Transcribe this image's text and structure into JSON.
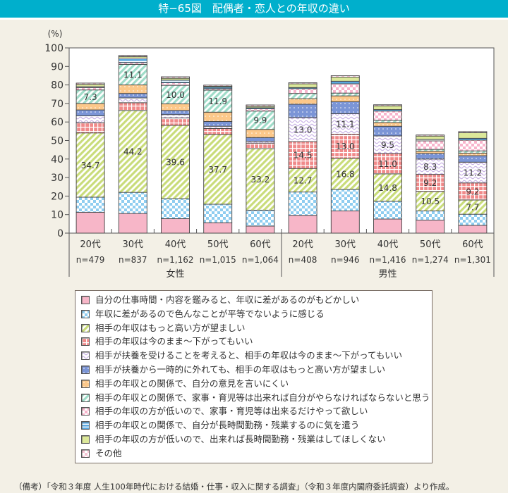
{
  "title": "特−65図　配偶者・恋人との年収の違い",
  "note": "（備考）「令和３年度 人生100年時代における結婚・仕事・収入に関する調査」（令和３年度内閣府委託調査）より作成。",
  "chart_data": {
    "type": "bar",
    "stacked": true,
    "title": "特−65図　配偶者・恋人との年収の違い",
    "ylabel": "(%)",
    "ylim": [
      0,
      100
    ],
    "yticks": [
      0,
      10,
      20,
      30,
      40,
      50,
      60,
      70,
      80,
      90,
      100
    ],
    "grid": false,
    "legend_position": "bottom",
    "groups": [
      {
        "label": "女性",
        "categories": [
          0,
          1,
          2,
          3,
          4
        ]
      },
      {
        "label": "男性",
        "categories": [
          5,
          6,
          7,
          8,
          9
        ]
      }
    ],
    "categories": [
      "20代",
      "30代",
      "40代",
      "50代",
      "60代",
      "20代",
      "30代",
      "40代",
      "50代",
      "60代"
    ],
    "sample_sizes": [
      "n=479",
      "n=837",
      "n=1,162",
      "n=1,015",
      "n=1,064",
      "n=408",
      "n=946",
      "n=1,416",
      "n=1,274",
      "n=1,301"
    ],
    "series": [
      {
        "name": "自分の仕事時間・内容を鑑みると、年収に差があるのがもどかしい",
        "color": "#f7b6c8",
        "pattern": "solid",
        "values": [
          11.2,
          10.6,
          7.8,
          5.6,
          3.8,
          9.6,
          12.0,
          7.6,
          7.0,
          4.2
        ]
      },
      {
        "name": "年収に差があるので色んなことが平等でないように感じる",
        "color": "#8fcdf0",
        "pattern": "check",
        "values": [
          8.2,
          11.4,
          10.8,
          10.0,
          8.6,
          12.6,
          11.6,
          9.6,
          5.0,
          6.0
        ]
      },
      {
        "name": "相手の年収はもっと高い方が望ましい",
        "color": "#c9dc7a",
        "pattern": "diagonal",
        "labels": true,
        "values": [
          34.7,
          44.2,
          39.6,
          37.7,
          33.2,
          12.7,
          16.8,
          14.8,
          10.5,
          7.7
        ]
      },
      {
        "name": "相手の年収は今のまま〜下がってもいい",
        "color": "#f08a8a",
        "pattern": "grid",
        "labels_from": 5,
        "values": [
          5.5,
          4.2,
          4.0,
          3.2,
          3.0,
          14.5,
          13.0,
          11.0,
          9.2,
          9.2
        ]
      },
      {
        "name": "相手が扶養を受けることを考えると、相手の年収は今のまま〜下がってもいい",
        "color": "#c9b3e6",
        "pattern": "wave",
        "labels_from": 5,
        "values": [
          3.7,
          2.6,
          1.8,
          1.2,
          1.0,
          13.0,
          11.1,
          9.5,
          8.3,
          11.2
        ]
      },
      {
        "name": "相手が扶養から一時的に外れても、相手の年収はもっと高い方が望ましい",
        "color": "#7b95d6",
        "pattern": "dot",
        "values": [
          3.2,
          2.4,
          2.2,
          2.6,
          2.0,
          7.2,
          6.4,
          5.2,
          3.0,
          3.5
        ]
      },
      {
        "name": "相手の年収との関係で、自分の意見を言いにくい",
        "color": "#fcc88a",
        "pattern": "dot",
        "values": [
          3.5,
          4.6,
          3.6,
          5.0,
          4.4,
          3.0,
          3.2,
          2.0,
          1.2,
          1.4
        ]
      },
      {
        "name": "相手の年収との関係で、家事・育児等は出来れば自分がやらなければならないと思う",
        "color": "#9fdcc8",
        "pattern": "diagonal",
        "labels_to": 5,
        "values": [
          7.3,
          11.1,
          10.0,
          11.9,
          9.9,
          2.8,
          1.5,
          1.2,
          1.0,
          1.2
        ]
      },
      {
        "name": "相手の年収の方が低いので、家事・育児等は出来るだけやって欲しい",
        "color": "#f8b4cc",
        "pattern": "check",
        "values": [
          1.2,
          1.0,
          1.4,
          0.8,
          1.2,
          2.6,
          5.0,
          5.0,
          4.6,
          5.8
        ]
      },
      {
        "name": "相手の年収との関係で、自分が長時間勤務・残業するのに気を遣う",
        "color": "#5aa8e0",
        "pattern": "stripe",
        "values": [
          0.6,
          2.4,
          1.4,
          0.8,
          0.6,
          0.6,
          1.4,
          0.8,
          0.8,
          1.0
        ]
      },
      {
        "name": "相手の年収の方が低いので、出来れば長時間勤務・残業はしてほしくない",
        "color": "#dce89a",
        "pattern": "solid",
        "values": [
          1.2,
          0.8,
          1.0,
          0.5,
          0.7,
          2.0,
          2.2,
          2.0,
          1.8,
          3.0
        ]
      },
      {
        "name": "その他",
        "color": "#f7c4d4",
        "pattern": "check",
        "values": [
          0.7,
          0.6,
          0.8,
          0.6,
          0.8,
          0.6,
          0.8,
          0.6,
          0.6,
          0.6
        ]
      }
    ],
    "data_labels": {
      "series_2": [
        "34.7",
        "44.2",
        "39.6",
        "37.7",
        "33.2",
        "12.7",
        "16.8",
        "14.8",
        "10.5",
        "7.7"
      ],
      "series_3": [
        null,
        null,
        null,
        null,
        null,
        "14.5",
        "13.0",
        "11.0",
        "9.2",
        "9.2"
      ],
      "series_4": [
        null,
        null,
        null,
        null,
        null,
        "13.0",
        "11.1",
        "9.5",
        "8.3",
        "11.2"
      ],
      "series_7": [
        "7.3",
        "11.1",
        "10.0",
        "11.9",
        "9.9",
        null,
        null,
        null,
        null,
        null
      ]
    }
  },
  "legend": [
    {
      "label": "自分の仕事時間・内容を鑑みると、年収に差があるのがもどかしい"
    },
    {
      "label": "年収に差があるので色んなことが平等でないように感じる"
    },
    {
      "label": "相手の年収はもっと高い方が望ましい"
    },
    {
      "label": "相手の年収は今のまま〜下がってもいい"
    },
    {
      "label": "相手が扶養を受けることを考えると、相手の年収は今のまま〜下がってもいい"
    },
    {
      "label": "相手が扶養から一時的に外れても、相手の年収はもっと高い方が望ましい"
    },
    {
      "label": "相手の年収との関係で、自分の意見を言いにくい"
    },
    {
      "label": "相手の年収との関係で、家事・育児等は出来れば自分がやらなければならないと思う"
    },
    {
      "label": "相手の年収の方が低いので、家事・育児等は出来るだけやって欲しい"
    },
    {
      "label": "相手の年収との関係で、自分が長時間勤務・残業するのに気を遣う"
    },
    {
      "label": "相手の年収の方が低いので、出来れば長時間勤務・残業はしてほしくない"
    },
    {
      "label": "その他"
    }
  ]
}
